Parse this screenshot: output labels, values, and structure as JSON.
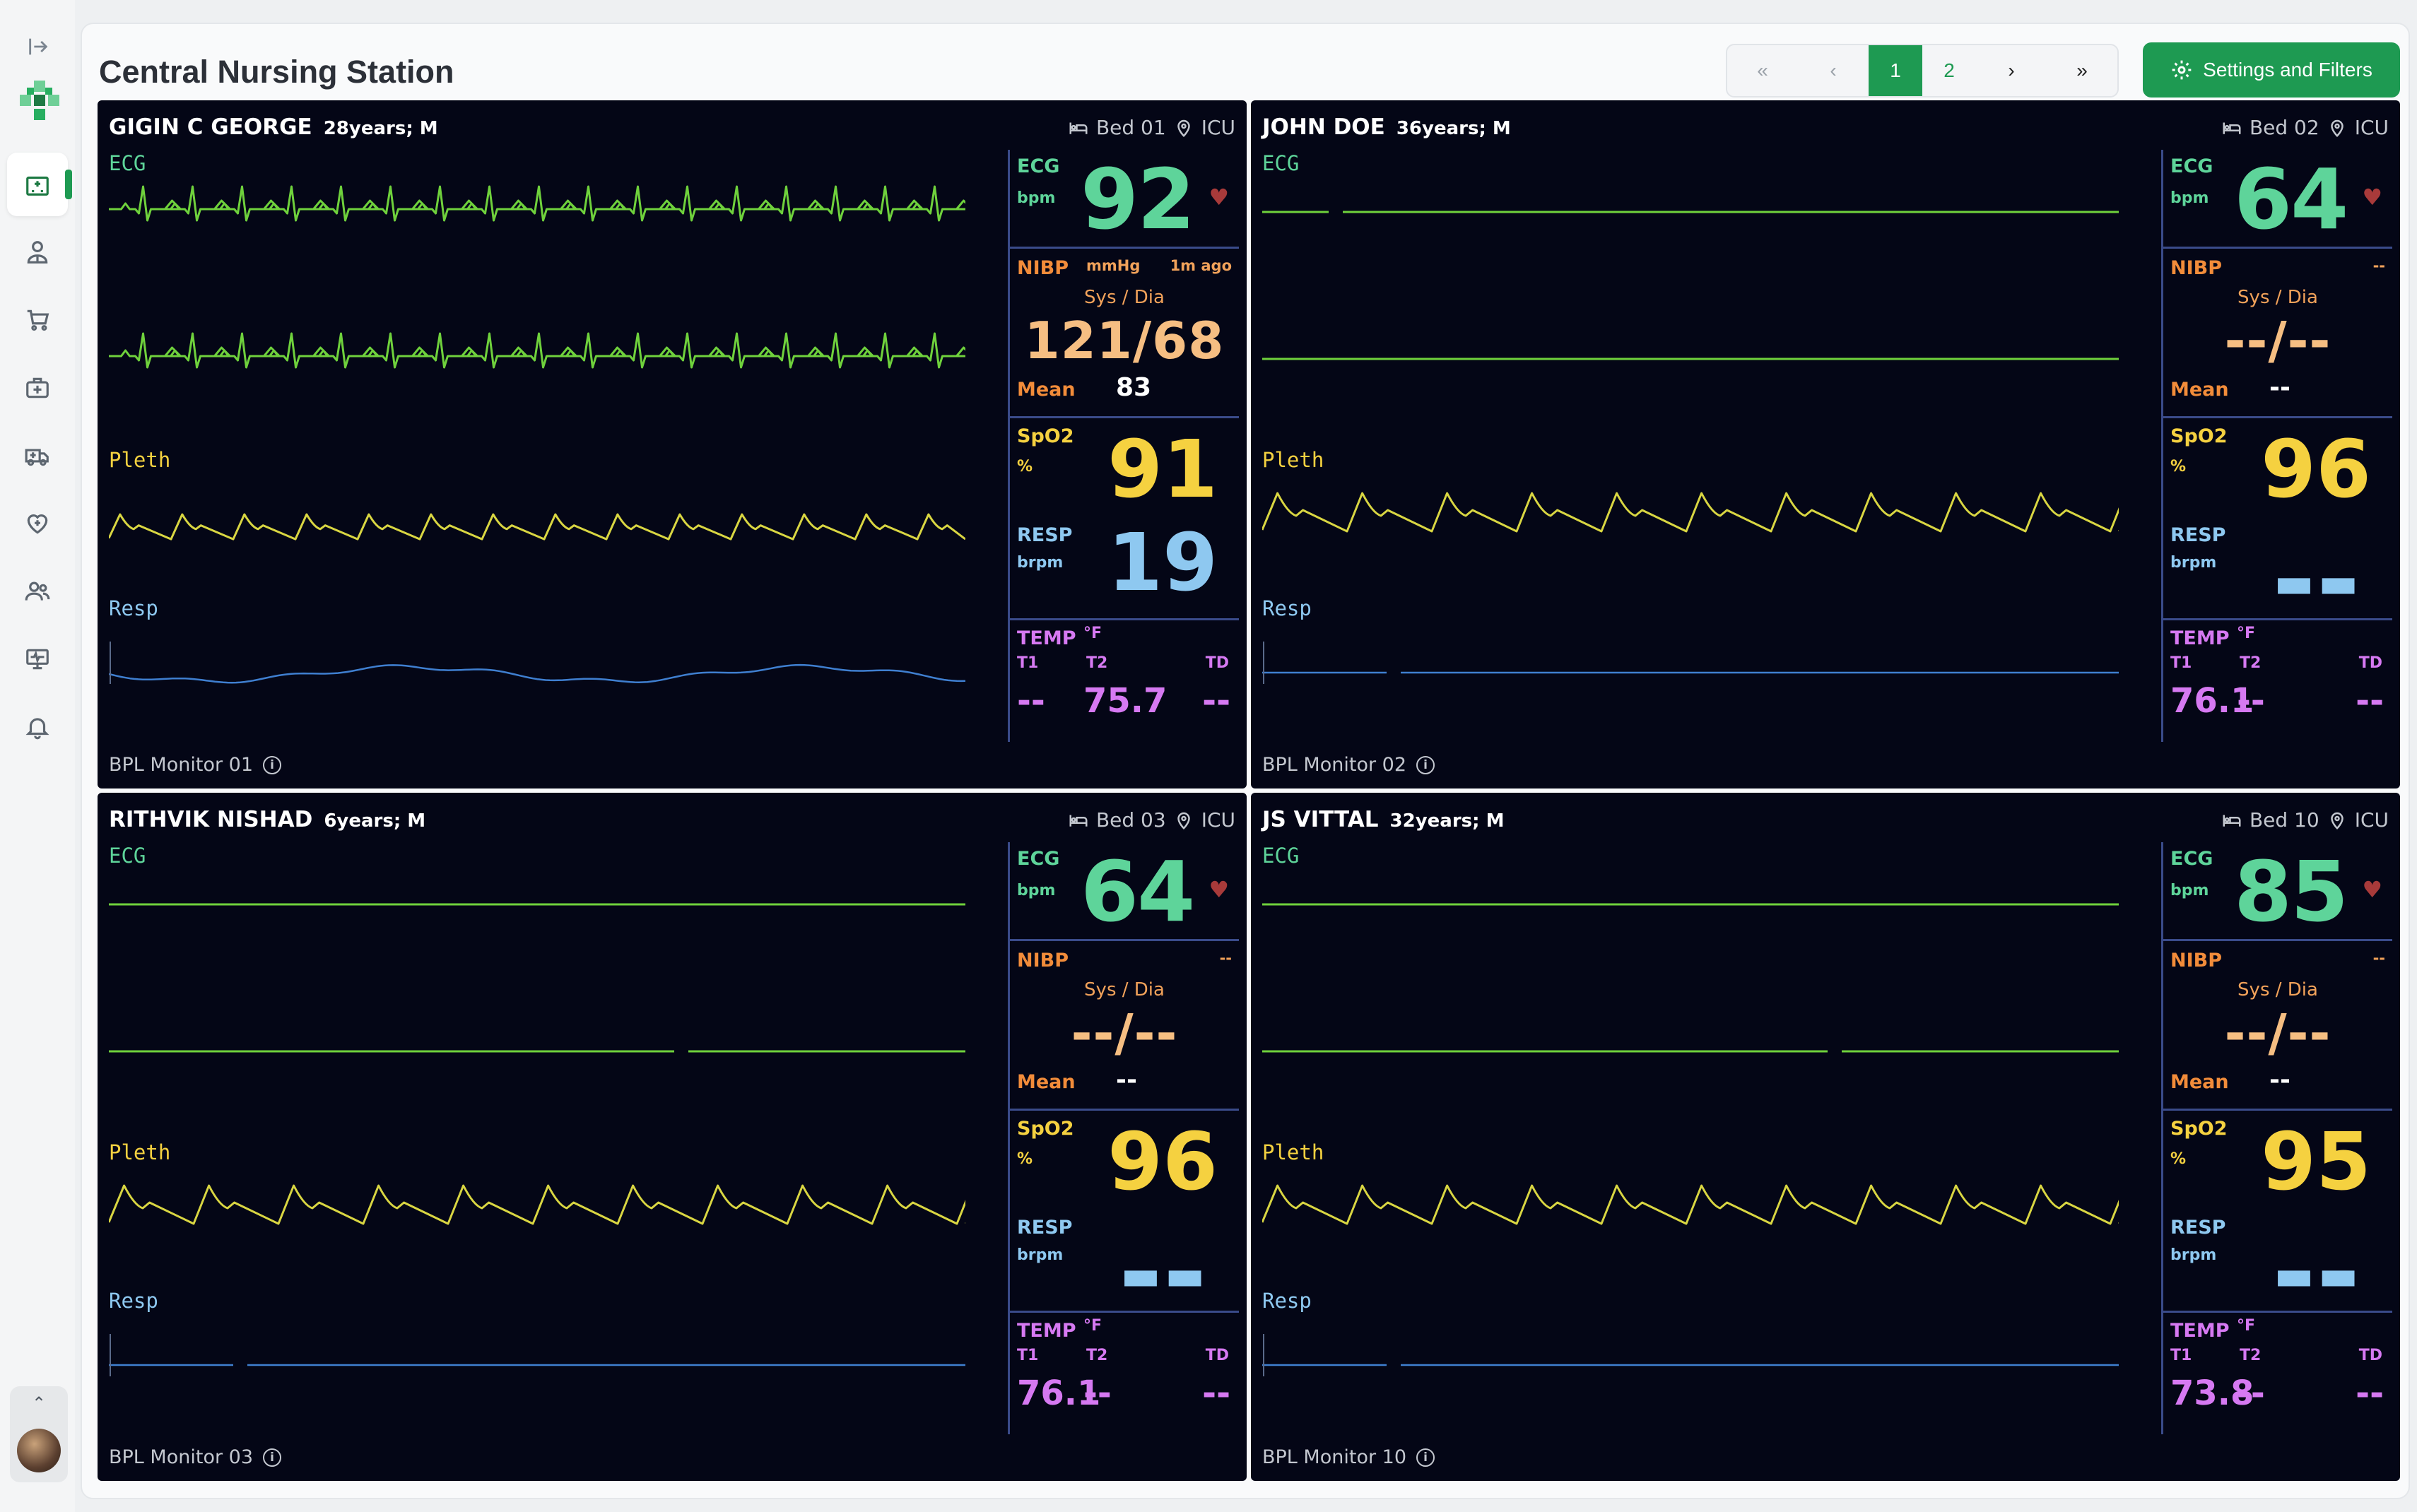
{
  "page": {
    "title": "Central Nursing Station",
    "settings_label": "Settings and Filters",
    "pagination": {
      "first": "«",
      "prev": "‹",
      "pages": [
        "1",
        "2"
      ],
      "current": "1",
      "next": "›",
      "last": "»"
    }
  },
  "sidebar": {
    "items": [
      {
        "name": "hospital-icon",
        "active": true
      },
      {
        "name": "doctor-icon",
        "active": false
      },
      {
        "name": "cart-icon",
        "active": false
      },
      {
        "name": "medical-kit-icon",
        "active": false
      },
      {
        "name": "ambulance-icon",
        "active": false
      },
      {
        "name": "heart-plus-icon",
        "active": false
      },
      {
        "name": "users-icon",
        "active": false
      },
      {
        "name": "monitor-icon",
        "active": false
      },
      {
        "name": "bell-icon",
        "active": false
      }
    ]
  },
  "colors": {
    "accent": "#1e9a52",
    "ecg": "#5ed49a",
    "nibp": "#f28c3a",
    "spo2": "#f5d140",
    "resp": "#8ec8f0",
    "temp": "#d679f2",
    "panel_bg": "#040616"
  },
  "wave_labels": {
    "ecg": "ECG",
    "pleth": "Pleth",
    "resp": "Resp"
  },
  "vital_labels": {
    "ecg": "ECG",
    "bpm": "bpm",
    "nibp": "NIBP",
    "sys_dia": "Sys / Dia",
    "mean": "Mean",
    "spo2": "SpO2",
    "percent": "%",
    "resp": "RESP",
    "brpm": "brpm",
    "temp": "TEMP",
    "temp_unit": "°F",
    "t1": "T1",
    "t2": "T2",
    "td": "TD"
  },
  "patients": [
    {
      "name": "GIGIN C GEORGE",
      "age_sex": "28years; M",
      "bed": "Bed 01",
      "ward": "ICU",
      "monitor": "BPL Monitor 01",
      "ecg": "92",
      "nibp_unit": "mmHg",
      "nibp_time": "1m ago",
      "bp": "121/68",
      "mean": "83",
      "spo2": "91",
      "resp": "19",
      "t1": "--",
      "t2": "75.7",
      "td": "--"
    },
    {
      "name": "JOHN DOE",
      "age_sex": "36years; M",
      "bed": "Bed 02",
      "ward": "ICU",
      "monitor": "BPL Monitor 02",
      "ecg": "64",
      "nibp_unit": "",
      "nibp_time": "--",
      "bp": "--/--",
      "mean": "--",
      "spo2": "96",
      "resp": "- -",
      "t1": "76.1",
      "t2": "--",
      "td": "--"
    },
    {
      "name": "RITHVIK NISHAD",
      "age_sex": "6years; M",
      "bed": "Bed 03",
      "ward": "ICU",
      "monitor": "BPL Monitor 03",
      "ecg": "64",
      "nibp_unit": "",
      "nibp_time": "--",
      "bp": "--/--",
      "mean": "--",
      "spo2": "96",
      "resp": "- -",
      "t1": "76.1",
      "t2": "--",
      "td": "--"
    },
    {
      "name": "JS VITTAL",
      "age_sex": "32years; M",
      "bed": "Bed 10",
      "ward": "ICU",
      "monitor": "BPL Monitor 10",
      "ecg": "85",
      "nibp_unit": "",
      "nibp_time": "--",
      "bp": "--/--",
      "mean": "--",
      "spo2": "95",
      "resp": "- -",
      "t1": "73.8",
      "t2": "--",
      "td": "--"
    }
  ]
}
